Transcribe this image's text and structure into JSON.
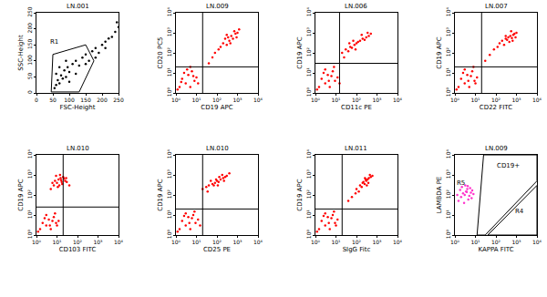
{
  "chart_data": [
    {
      "type": "scatter",
      "title": "LN.001",
      "x_label": "FSC-Height",
      "y_label": "SSC-Height",
      "xlim": [
        0,
        250
      ],
      "ylim": [
        0,
        250
      ],
      "xticks": [
        0,
        50,
        100,
        150,
        200,
        250
      ],
      "yticks": [
        0,
        50,
        100,
        150,
        200,
        250
      ],
      "grid": false,
      "gates": [
        {
          "label": "R1",
          "x": [
            45,
            50,
            150,
            175,
            130
          ],
          "y": [
            3,
            120,
            150,
            100,
            3
          ],
          "label_x": 55,
          "label_y": 160
        }
      ],
      "series": [
        {
          "color": "#000000",
          "x": [
            55,
            60,
            65,
            70,
            75,
            80,
            85,
            90,
            95,
            100,
            110,
            120,
            130,
            140,
            150,
            160,
            170,
            180,
            190,
            200,
            210,
            220,
            230,
            240,
            60,
            70,
            90,
            100,
            120,
            150,
            180,
            210,
            250,
            245
          ],
          "y": [
            15,
            25,
            40,
            30,
            55,
            45,
            70,
            50,
            80,
            65,
            90,
            100,
            85,
            110,
            120,
            100,
            130,
            140,
            125,
            150,
            160,
            170,
            175,
            190,
            60,
            80,
            100,
            35,
            60,
            90,
            110,
            140,
            205,
            220
          ]
        }
      ]
    },
    {
      "type": "scatter",
      "title": "LN.009",
      "x_label": "CD19 APC",
      "y_label": "CD20 PC5",
      "log": true,
      "grid": false,
      "xlim": [
        1,
        10000
      ],
      "ylim": [
        1,
        10000
      ],
      "xticks": [
        {
          "value": 1,
          "label": "10⁰"
        },
        {
          "value": 10,
          "label": "10¹"
        },
        {
          "value": 100,
          "label": "10²"
        },
        {
          "value": 1000,
          "label": "10³"
        },
        {
          "value": 10000,
          "label": "10⁴"
        }
      ],
      "yticks": [
        {
          "value": 1,
          "label": "10⁰"
        },
        {
          "value": 10,
          "label": "10¹"
        },
        {
          "value": 100,
          "label": "10²"
        },
        {
          "value": 1000,
          "label": "10³"
        },
        {
          "value": 10000,
          "label": "10⁴"
        }
      ],
      "quadrant_x": 20,
      "quadrant_y": 20,
      "series": [
        {
          "color": "#ff0000",
          "x": [
            1.5,
            2,
            3,
            4,
            5,
            6,
            8,
            2.5,
            1.2,
            10,
            3.5,
            7,
            1.8,
            12,
            5,
            150,
            200,
            300,
            250,
            400,
            500,
            350,
            600,
            800,
            700,
            1000,
            450,
            300,
            900,
            1200,
            120,
            80,
            60,
            40
          ],
          "y": [
            2,
            5,
            3,
            8,
            2,
            12,
            4,
            10,
            1.5,
            6,
            15,
            7,
            3.5,
            3,
            20,
            200,
            300,
            250,
            500,
            400,
            700,
            600,
            500,
            900,
            1200,
            1000,
            300,
            800,
            600,
            1500,
            150,
            100,
            60,
            30
          ]
        }
      ]
    },
    {
      "type": "scatter",
      "title": "LN.006",
      "x_label": "CD11c PE",
      "y_label": "CD19 APC",
      "log": true,
      "grid": false,
      "xlim": [
        1,
        10000
      ],
      "ylim": [
        1,
        10000
      ],
      "xticks": [
        {
          "value": 1,
          "label": "10⁰"
        },
        {
          "value": 10,
          "label": "10¹"
        },
        {
          "value": 100,
          "label": "10²"
        },
        {
          "value": 1000,
          "label": "10³"
        },
        {
          "value": 10000,
          "label": "10⁴"
        }
      ],
      "yticks": [
        {
          "value": 1,
          "label": "10⁰"
        },
        {
          "value": 10,
          "label": "10¹"
        },
        {
          "value": 100,
          "label": "10²"
        },
        {
          "value": 1000,
          "label": "10³"
        },
        {
          "value": 10000,
          "label": "10⁴"
        }
      ],
      "quadrant_x": 15,
      "quadrant_y": 30,
      "series": [
        {
          "color": "#ff0000",
          "x": [
            1.5,
            2,
            3,
            4,
            5,
            7,
            9,
            12,
            2.5,
            6,
            3,
            1.2,
            15,
            8,
            4.5,
            20,
            30,
            40,
            50,
            60,
            80,
            100,
            120,
            150,
            200,
            250,
            300,
            400,
            500,
            70,
            90,
            180,
            350,
            25,
            45
          ],
          "y": [
            2,
            5,
            3,
            8,
            2,
            12,
            4,
            6,
            10,
            7,
            15,
            1.5,
            3,
            20,
            4,
            100,
            150,
            120,
            200,
            180,
            250,
            300,
            350,
            400,
            500,
            450,
            600,
            700,
            900,
            400,
            150,
            800,
            1000,
            60,
            300
          ]
        }
      ]
    },
    {
      "type": "scatter",
      "title": "LN.007",
      "x_label": "CD22 FITC",
      "y_label": "CD19 APC",
      "log": true,
      "grid": false,
      "xlim": [
        1,
        10000
      ],
      "ylim": [
        1,
        10000
      ],
      "xticks": [
        {
          "value": 1,
          "label": "10⁰"
        },
        {
          "value": 10,
          "label": "10¹"
        },
        {
          "value": 100,
          "label": "10²"
        },
        {
          "value": 1000,
          "label": "10³"
        },
        {
          "value": 10000,
          "label": "10⁴"
        }
      ],
      "yticks": [
        {
          "value": 1,
          "label": "10⁰"
        },
        {
          "value": 10,
          "label": "10¹"
        },
        {
          "value": 100,
          "label": "10²"
        },
        {
          "value": 1000,
          "label": "10³"
        },
        {
          "value": 10000,
          "label": "10⁴"
        }
      ],
      "quadrant_x": 20,
      "quadrant_y": 20,
      "series": [
        {
          "color": "#ff0000",
          "x": [
            1.5,
            2,
            3,
            4,
            5,
            7,
            9,
            12,
            2.5,
            6,
            3,
            1.2,
            10,
            8,
            4.5,
            150,
            200,
            250,
            300,
            350,
            400,
            500,
            600,
            700,
            800,
            1000,
            450,
            300,
            550,
            900,
            120,
            80,
            50,
            30,
            650
          ],
          "y": [
            2,
            5,
            3,
            8,
            2,
            12,
            4,
            6,
            10,
            7,
            15,
            1.5,
            3,
            20,
            4,
            300,
            400,
            250,
            500,
            450,
            600,
            700,
            550,
            800,
            900,
            1000,
            350,
            700,
            1200,
            600,
            200,
            150,
            80,
            40,
            400
          ]
        }
      ]
    },
    {
      "type": "scatter",
      "title": "LN.010",
      "x_label": "CD103 FITC",
      "y_label": "CD19 APC",
      "log": true,
      "grid": false,
      "xlim": [
        1,
        10000
      ],
      "ylim": [
        1,
        10000
      ],
      "xticks": [
        {
          "value": 1,
          "label": "10⁰"
        },
        {
          "value": 10,
          "label": "10¹"
        },
        {
          "value": 100,
          "label": "10²"
        },
        {
          "value": 1000,
          "label": "10³"
        },
        {
          "value": 10000,
          "label": "10⁴"
        }
      ],
      "yticks": [
        {
          "value": 1,
          "label": "10⁰"
        },
        {
          "value": 10,
          "label": "10¹"
        },
        {
          "value": 100,
          "label": "10²"
        },
        {
          "value": 1000,
          "label": "10³"
        },
        {
          "value": 10000,
          "label": "10⁴"
        }
      ],
      "quadrant_x": 20,
      "quadrant_y": 25,
      "series": [
        {
          "color": "#ff0000",
          "x": [
            1.5,
            2,
            3,
            4,
            5,
            7,
            9,
            12,
            2.5,
            6,
            3,
            1.2,
            10,
            8,
            4.5,
            5,
            7,
            8,
            10,
            12,
            15,
            18,
            20,
            25,
            30,
            9,
            11,
            14,
            16,
            22,
            6,
            13,
            28,
            17,
            40
          ],
          "y": [
            2,
            4,
            3,
            6,
            2,
            8,
            4,
            5,
            7,
            5,
            10,
            1.5,
            3,
            12,
            3,
            200,
            300,
            500,
            400,
            600,
            700,
            350,
            800,
            500,
            450,
            900,
            250,
            1000,
            550,
            650,
            400,
            300,
            700,
            450,
            300
          ]
        }
      ]
    },
    {
      "type": "scatter",
      "title": "LN.010",
      "x_label": "CD25 PE",
      "y_label": "CD19 APC",
      "log": true,
      "grid": false,
      "xlim": [
        1,
        10000
      ],
      "ylim": [
        1,
        10000
      ],
      "xticks": [
        {
          "value": 1,
          "label": "10⁰"
        },
        {
          "value": 10,
          "label": "10¹"
        },
        {
          "value": 100,
          "label": "10²"
        },
        {
          "value": 1000,
          "label": "10³"
        },
        {
          "value": 10000,
          "label": "10⁴"
        }
      ],
      "yticks": [
        {
          "value": 1,
          "label": "10⁰"
        },
        {
          "value": 10,
          "label": "10¹"
        },
        {
          "value": 100,
          "label": "10²"
        },
        {
          "value": 1000,
          "label": "10³"
        },
        {
          "value": 10000,
          "label": "10⁴"
        }
      ],
      "quadrant_x": 20,
      "quadrant_y": 20,
      "series": [
        {
          "color": "#ff0000",
          "x": [
            1.5,
            2,
            3,
            4,
            5,
            7,
            9,
            12,
            2.5,
            6,
            3,
            1.2,
            15,
            8,
            4.5,
            20,
            30,
            40,
            60,
            80,
            100,
            120,
            150,
            200,
            250,
            300,
            400,
            50,
            70,
            90,
            180,
            35,
            130,
            220,
            110
          ],
          "y": [
            2,
            5,
            3,
            8,
            2,
            10,
            4,
            6,
            9,
            7,
            12,
            1.5,
            3,
            15,
            4,
            200,
            250,
            300,
            350,
            400,
            500,
            450,
            600,
            700,
            800,
            900,
            1200,
            500,
            300,
            600,
            1000,
            150,
            800,
            500,
            300
          ]
        }
      ]
    },
    {
      "type": "scatter",
      "title": "LN.011",
      "x_label": "SIgG Fitc",
      "y_label": "CD19 APC",
      "log": true,
      "grid": false,
      "xlim": [
        1,
        10000
      ],
      "ylim": [
        1,
        10000
      ],
      "xticks": [
        {
          "value": 1,
          "label": "10⁰"
        },
        {
          "value": 10,
          "label": "10¹"
        },
        {
          "value": 100,
          "label": "10²"
        },
        {
          "value": 1000,
          "label": "10³"
        },
        {
          "value": 10000,
          "label": "10⁴"
        }
      ],
      "yticks": [
        {
          "value": 1,
          "label": "10⁰"
        },
        {
          "value": 10,
          "label": "10¹"
        },
        {
          "value": 100,
          "label": "10²"
        },
        {
          "value": 1000,
          "label": "10³"
        },
        {
          "value": 10000,
          "label": "10⁴"
        }
      ],
      "quadrant_x": 20,
      "quadrant_y": 20,
      "series": [
        {
          "color": "#ff0000",
          "x": [
            1.5,
            2,
            3,
            4,
            5,
            7,
            9,
            12,
            2.5,
            6,
            3,
            1.2,
            10,
            8,
            4.5,
            100,
            150,
            200,
            250,
            300,
            350,
            400,
            500,
            600,
            180,
            220,
            280,
            320,
            450,
            130,
            90,
            60,
            40,
            260,
            380
          ],
          "y": [
            2,
            5,
            3,
            8,
            2,
            10,
            4,
            6,
            9,
            7,
            12,
            1.5,
            3,
            15,
            4,
            200,
            300,
            400,
            350,
            500,
            600,
            700,
            800,
            900,
            250,
            450,
            600,
            300,
            1000,
            150,
            120,
            80,
            50,
            700,
            400
          ]
        }
      ]
    },
    {
      "type": "scatter",
      "title": "LN.009",
      "x_label": "KAPPA FITC",
      "y_label": "LAMBDA PE",
      "log": true,
      "grid": false,
      "xlim": [
        1,
        10000
      ],
      "ylim": [
        1,
        10000
      ],
      "xticks": [
        {
          "value": 1,
          "label": "10⁰"
        },
        {
          "value": 10,
          "label": "10¹"
        },
        {
          "value": 100,
          "label": "10²"
        },
        {
          "value": 1000,
          "label": "10³"
        },
        {
          "value": 10000,
          "label": "10⁴"
        }
      ],
      "yticks": [
        {
          "value": 1,
          "label": "10⁰"
        },
        {
          "value": 10,
          "label": "10¹"
        },
        {
          "value": 100,
          "label": "10²"
        },
        {
          "value": 1000,
          "label": "10³"
        },
        {
          "value": 10000,
          "label": "10⁴"
        }
      ],
      "gates": [
        {
          "label": "R5",
          "label_x": 2,
          "label_y": 400
        },
        {
          "label": "CD19+",
          "x": [
            12,
            25,
            10000,
            10000,
            30
          ],
          "y": [
            1,
            10000,
            10000,
            500,
            1
          ],
          "label_x": 400,
          "label_y": 3000
        },
        {
          "label": "R4",
          "x": [
            40,
            10000,
            10000
          ],
          "y": [
            1,
            300,
            1
          ],
          "label_x": 1500,
          "label_y": 15
        }
      ],
      "series": [
        {
          "color": "#ff33cc",
          "x": [
            1.5,
            2,
            2.5,
            3,
            3.5,
            4,
            5,
            6,
            7,
            8,
            2.2,
            3.2,
            4.5,
            1.8,
            2.8,
            5.5,
            3.8,
            6.5,
            1.3,
            4.2
          ],
          "y": [
            50,
            80,
            120,
            100,
            150,
            200,
            90,
            130,
            170,
            110,
            250,
            300,
            60,
            180,
            40,
            220,
            140,
            70,
            100,
            280
          ]
        }
      ]
    }
  ]
}
